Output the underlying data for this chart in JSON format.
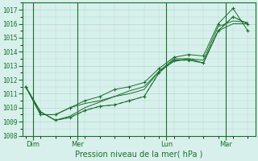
{
  "title": "",
  "xlabel": "Pression niveau de la mer( hPa )",
  "bg_color": "#d8f0ec",
  "grid_color": "#b0d8d0",
  "line_color": "#1a6e2a",
  "ylim": [
    1008.0,
    1017.5
  ],
  "xlim": [
    -0.2,
    15.5
  ],
  "day_labels": [
    "Dim",
    "Mer",
    "Lun",
    "Mar"
  ],
  "day_positions": [
    0.5,
    3.5,
    9.5,
    13.5
  ],
  "vline_positions": [
    0.5,
    3.5,
    9.5,
    13.5
  ],
  "yticks": [
    1008,
    1009,
    1010,
    1011,
    1012,
    1013,
    1014,
    1015,
    1016,
    1017
  ],
  "series1_x": [
    0,
    1,
    2,
    3,
    4,
    5,
    6,
    7,
    8,
    9,
    10,
    11,
    12,
    13,
    14,
    15
  ],
  "series1_y": [
    1011.5,
    1009.7,
    1009.1,
    1009.3,
    1009.8,
    1010.1,
    1010.2,
    1010.5,
    1010.8,
    1012.5,
    1013.4,
    1013.4,
    1013.2,
    1015.5,
    1016.5,
    1016.0
  ],
  "series2_x": [
    0,
    1,
    2,
    3,
    4,
    5,
    6,
    7,
    8,
    9,
    10,
    11,
    12,
    13,
    14,
    15
  ],
  "series2_y": [
    1011.5,
    1009.7,
    1009.1,
    1009.3,
    1009.8,
    1010.1,
    1010.2,
    1010.5,
    1010.8,
    1012.5,
    1013.4,
    1013.4,
    1013.2,
    1015.5,
    1016.5,
    1016.0
  ],
  "series3_x": [
    0,
    1,
    2,
    3,
    4,
    5,
    6,
    7,
    8,
    9,
    10,
    11,
    12,
    13,
    14,
    15
  ],
  "series3_y": [
    1011.5,
    1009.7,
    1009.1,
    1009.4,
    1010.0,
    1010.4,
    1010.8,
    1011.2,
    1011.5,
    1012.6,
    1013.5,
    1013.5,
    1013.4,
    1015.8,
    1016.2,
    1016.1
  ],
  "series4_x": [
    0,
    1,
    2,
    3,
    4,
    5,
    6,
    7,
    8,
    9,
    10,
    11,
    12,
    13,
    14,
    15
  ],
  "series4_y": [
    1011.5,
    1009.5,
    1009.5,
    1010.0,
    1010.5,
    1010.8,
    1011.3,
    1011.5,
    1011.8,
    1012.8,
    1013.6,
    1013.8,
    1013.7,
    1016.0,
    1017.1,
    1015.5
  ],
  "series5_x": [
    0,
    1,
    2,
    3,
    4,
    5,
    6,
    7,
    8,
    9,
    10,
    11,
    12,
    13,
    14,
    15
  ],
  "series5_y": [
    1011.5,
    1009.5,
    1009.5,
    1010.0,
    1010.3,
    1010.5,
    1010.8,
    1011.0,
    1011.3,
    1012.6,
    1013.3,
    1013.5,
    1013.2,
    1015.5,
    1016.0,
    1016.0
  ]
}
